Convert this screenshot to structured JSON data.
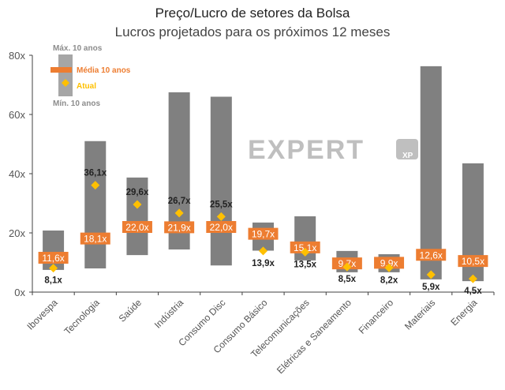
{
  "chart_data": {
    "type": "range-bar",
    "title": "Preço/Lucro de setores da Bolsa",
    "subtitle": "Lucros projetados para os próximos 12 meses",
    "ylim": [
      0,
      80
    ],
    "yticks": [
      "0x",
      "20x",
      "40x",
      "60x",
      "80x"
    ],
    "ytick_values": [
      0,
      20,
      40,
      60,
      80
    ],
    "legend": {
      "max": "Máx. 10 anos",
      "mean": "Média 10 anos",
      "current": "Atual",
      "min": "Mín. 10 anos",
      "placement": "top-left"
    },
    "categories": [
      "Ibovespa",
      "Tecnologia",
      "Saúde",
      "Indústria",
      "Consumo Disc",
      "Consumo Básico",
      "Telecomunicações",
      "Elétricas e Saneamento",
      "Financeiro",
      "Materiais",
      "Energia"
    ],
    "max_10y": [
      20.8,
      51,
      38.7,
      67.5,
      66,
      23.5,
      25.6,
      13.9,
      12.8,
      76.3,
      43.5
    ],
    "min_10y": [
      7.5,
      8,
      12.5,
      14.4,
      9,
      14,
      10.7,
      6.7,
      6.7,
      4.3,
      3.7
    ],
    "mean_10y": [
      11.6,
      18.1,
      22.0,
      21.9,
      22.0,
      19.7,
      15.1,
      9.7,
      9.9,
      12.6,
      10.5
    ],
    "mean_labels": [
      "11,6x",
      "18,1x",
      "22,0x",
      "21,9x",
      "22,0x",
      "19,7x",
      "15,1x",
      "9,7x",
      "9,9x",
      "12,6x",
      "10,5x"
    ],
    "current": [
      8.1,
      36.1,
      29.6,
      26.7,
      25.5,
      13.9,
      13.5,
      8.5,
      8.2,
      5.9,
      4.5
    ],
    "current_labels": [
      "8,1x",
      "36,1x",
      "29,6x",
      "26,7x",
      "25,5x",
      "13,9x",
      "13,5x",
      "8,5x",
      "8,2x",
      "5,9x",
      "4,5x"
    ],
    "current_label_pos": [
      "below",
      "above",
      "above",
      "above",
      "above",
      "below",
      "below",
      "below",
      "below",
      "below",
      "below"
    ],
    "colors": {
      "range": "#808080",
      "mean": "#ED7D31",
      "current": "#FFC000",
      "legend_range": "#A6A6A6",
      "axis": "#404040"
    }
  },
  "watermark": {
    "text": "EXPERT",
    "badge": "XP"
  }
}
